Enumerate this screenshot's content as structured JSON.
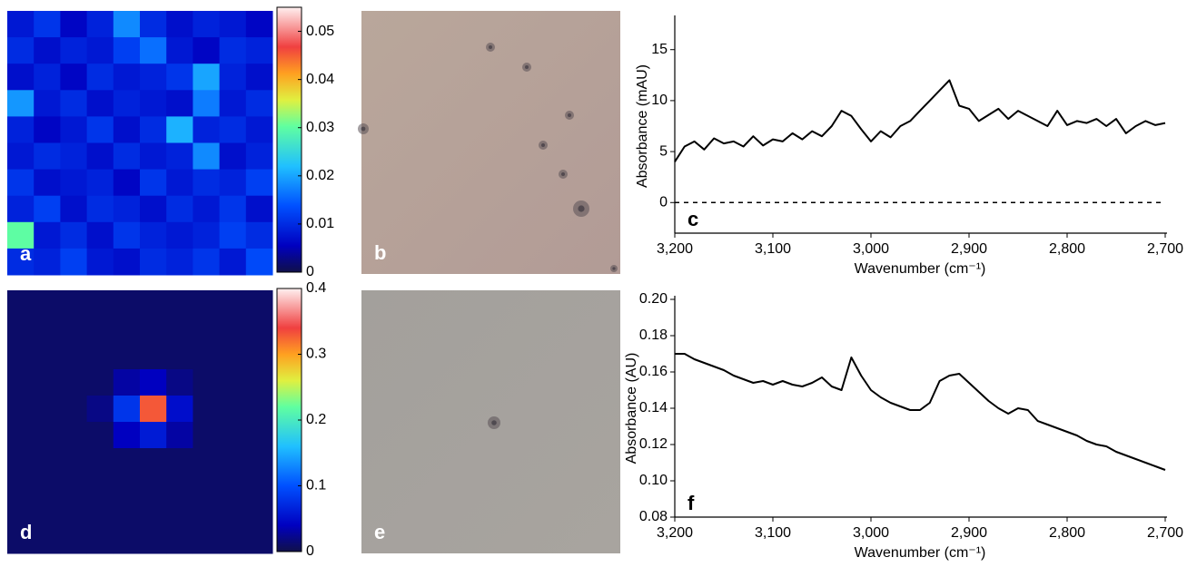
{
  "chart_data": [
    {
      "type": "heatmap",
      "label": "a",
      "values": [
        [
          0.008,
          0.011,
          0.006,
          0.009,
          0.018,
          0.01,
          0.007,
          0.009,
          0.008,
          0.006
        ],
        [
          0.01,
          0.007,
          0.009,
          0.008,
          0.012,
          0.016,
          0.008,
          0.006,
          0.01,
          0.009
        ],
        [
          0.007,
          0.009,
          0.006,
          0.01,
          0.008,
          0.009,
          0.011,
          0.02,
          0.009,
          0.007
        ],
        [
          0.019,
          0.008,
          0.01,
          0.007,
          0.009,
          0.008,
          0.007,
          0.017,
          0.008,
          0.01
        ],
        [
          0.009,
          0.006,
          0.008,
          0.011,
          0.007,
          0.01,
          0.021,
          0.009,
          0.01,
          0.008
        ],
        [
          0.008,
          0.01,
          0.009,
          0.007,
          0.01,
          0.008,
          0.009,
          0.018,
          0.007,
          0.009
        ],
        [
          0.011,
          0.007,
          0.008,
          0.009,
          0.006,
          0.011,
          0.008,
          0.01,
          0.009,
          0.012
        ],
        [
          0.009,
          0.012,
          0.007,
          0.01,
          0.009,
          0.007,
          0.01,
          0.008,
          0.011,
          0.007
        ],
        [
          0.03,
          0.008,
          0.01,
          0.007,
          0.011,
          0.009,
          0.008,
          0.009,
          0.012,
          0.01
        ],
        [
          0.01,
          0.009,
          0.012,
          0.008,
          0.007,
          0.01,
          0.009,
          0.011,
          0.008,
          0.013
        ]
      ],
      "zlim": [
        0,
        0.055
      ],
      "zticks": [
        0,
        0.01,
        0.02,
        0.03,
        0.04,
        0.05
      ]
    },
    {
      "type": "image",
      "label": "b"
    },
    {
      "type": "line",
      "label": "c",
      "ylabel": "Absorbance (mAU)",
      "xlabel": "Wavenumber (cm⁻¹)",
      "x": [
        3200,
        3190,
        3180,
        3170,
        3160,
        3150,
        3140,
        3130,
        3120,
        3110,
        3100,
        3090,
        3080,
        3070,
        3060,
        3050,
        3040,
        3030,
        3020,
        3010,
        3000,
        2990,
        2980,
        2970,
        2960,
        2950,
        2940,
        2930,
        2920,
        2910,
        2900,
        2890,
        2880,
        2870,
        2860,
        2850,
        2840,
        2830,
        2820,
        2810,
        2800,
        2790,
        2780,
        2770,
        2760,
        2750,
        2740,
        2730,
        2720,
        2710,
        2700
      ],
      "values": [
        4.0,
        5.5,
        6.0,
        5.2,
        6.3,
        5.8,
        6.0,
        5.5,
        6.5,
        5.6,
        6.2,
        6.0,
        6.8,
        6.2,
        7.0,
        6.5,
        7.5,
        9.0,
        8.5,
        7.2,
        6.0,
        7.0,
        6.4,
        7.5,
        8.0,
        9.0,
        10.0,
        11.0,
        12.0,
        9.5,
        9.2,
        8.0,
        8.6,
        9.2,
        8.2,
        9.0,
        8.5,
        8.0,
        7.5,
        9.0,
        7.6,
        8.0,
        7.8,
        8.2,
        7.5,
        8.2,
        6.8,
        7.5,
        8.0,
        7.6,
        7.8
      ],
      "color": "#000000",
      "hline": 0,
      "xlim": [
        3200,
        2700
      ],
      "xticks": [
        {
          "value": 3200,
          "label": "3,200"
        },
        {
          "value": 3100,
          "label": "3,100"
        },
        {
          "value": 3000,
          "label": "3,000"
        },
        {
          "value": 2900,
          "label": "2,900"
        },
        {
          "value": 2800,
          "label": "2,800"
        },
        {
          "value": 2700,
          "label": "2,700"
        }
      ],
      "ylim": [
        -3,
        18
      ],
      "yticks": [
        0,
        5,
        10,
        15
      ]
    },
    {
      "type": "heatmap",
      "label": "d",
      "values": [
        [
          0.01,
          0.01,
          0.01,
          0.01,
          0.01,
          0.01,
          0.01,
          0.01,
          0.01,
          0.01
        ],
        [
          0.01,
          0.01,
          0.01,
          0.01,
          0.01,
          0.01,
          0.01,
          0.01,
          0.01,
          0.01
        ],
        [
          0.01,
          0.01,
          0.01,
          0.01,
          0.01,
          0.01,
          0.01,
          0.01,
          0.01,
          0.01
        ],
        [
          0.01,
          0.01,
          0.01,
          0.01,
          0.03,
          0.04,
          0.02,
          0.01,
          0.01,
          0.01
        ],
        [
          0.01,
          0.01,
          0.01,
          0.02,
          0.08,
          0.33,
          0.05,
          0.01,
          0.01,
          0.01
        ],
        [
          0.01,
          0.01,
          0.01,
          0.01,
          0.04,
          0.06,
          0.03,
          0.01,
          0.01,
          0.01
        ],
        [
          0.01,
          0.01,
          0.01,
          0.01,
          0.01,
          0.01,
          0.01,
          0.01,
          0.01,
          0.01
        ],
        [
          0.01,
          0.01,
          0.01,
          0.01,
          0.01,
          0.01,
          0.01,
          0.01,
          0.01,
          0.01
        ],
        [
          0.01,
          0.01,
          0.01,
          0.01,
          0.01,
          0.01,
          0.01,
          0.01,
          0.01,
          0.01
        ],
        [
          0.01,
          0.01,
          0.01,
          0.01,
          0.01,
          0.01,
          0.01,
          0.01,
          0.01,
          0.01
        ]
      ],
      "zlim": [
        0,
        0.4
      ],
      "zticks": [
        0,
        0.1,
        0.2,
        0.3,
        0.4
      ]
    },
    {
      "type": "image",
      "label": "e"
    },
    {
      "type": "line",
      "label": "f",
      "ylabel": "Absorbance (AU)",
      "xlabel": "Wavenumber (cm⁻¹)",
      "x": [
        3200,
        3190,
        3180,
        3170,
        3160,
        3150,
        3140,
        3130,
        3120,
        3110,
        3100,
        3090,
        3080,
        3070,
        3060,
        3050,
        3040,
        3030,
        3020,
        3010,
        3000,
        2990,
        2980,
        2970,
        2960,
        2950,
        2940,
        2930,
        2920,
        2910,
        2900,
        2890,
        2880,
        2870,
        2860,
        2850,
        2840,
        2830,
        2820,
        2810,
        2800,
        2790,
        2780,
        2770,
        2760,
        2750,
        2740,
        2730,
        2720,
        2710,
        2700
      ],
      "values": [
        0.17,
        0.17,
        0.167,
        0.165,
        0.163,
        0.161,
        0.158,
        0.156,
        0.154,
        0.155,
        0.153,
        0.155,
        0.153,
        0.152,
        0.154,
        0.157,
        0.152,
        0.15,
        0.168,
        0.158,
        0.15,
        0.146,
        0.143,
        0.141,
        0.139,
        0.139,
        0.143,
        0.155,
        0.158,
        0.159,
        0.154,
        0.149,
        0.144,
        0.14,
        0.137,
        0.14,
        0.139,
        0.133,
        0.131,
        0.129,
        0.127,
        0.125,
        0.122,
        0.12,
        0.119,
        0.116,
        0.114,
        0.112,
        0.11,
        0.108,
        0.106
      ],
      "color": "#000000",
      "xlim": [
        3200,
        2700
      ],
      "xticks": [
        {
          "value": 3200,
          "label": "3,200"
        },
        {
          "value": 3100,
          "label": "3,100"
        },
        {
          "value": 3000,
          "label": "3,000"
        },
        {
          "value": 2900,
          "label": "2,900"
        },
        {
          "value": 2800,
          "label": "2,800"
        },
        {
          "value": 2700,
          "label": "2,700"
        }
      ],
      "ylim": [
        0.08,
        0.2
      ],
      "yticks": [
        0.08,
        {
          "value": 0.1,
          "label": "0.10"
        },
        0.12,
        0.14,
        0.16,
        0.18,
        {
          "value": 0.2,
          "label": "0.20"
        }
      ]
    }
  ]
}
